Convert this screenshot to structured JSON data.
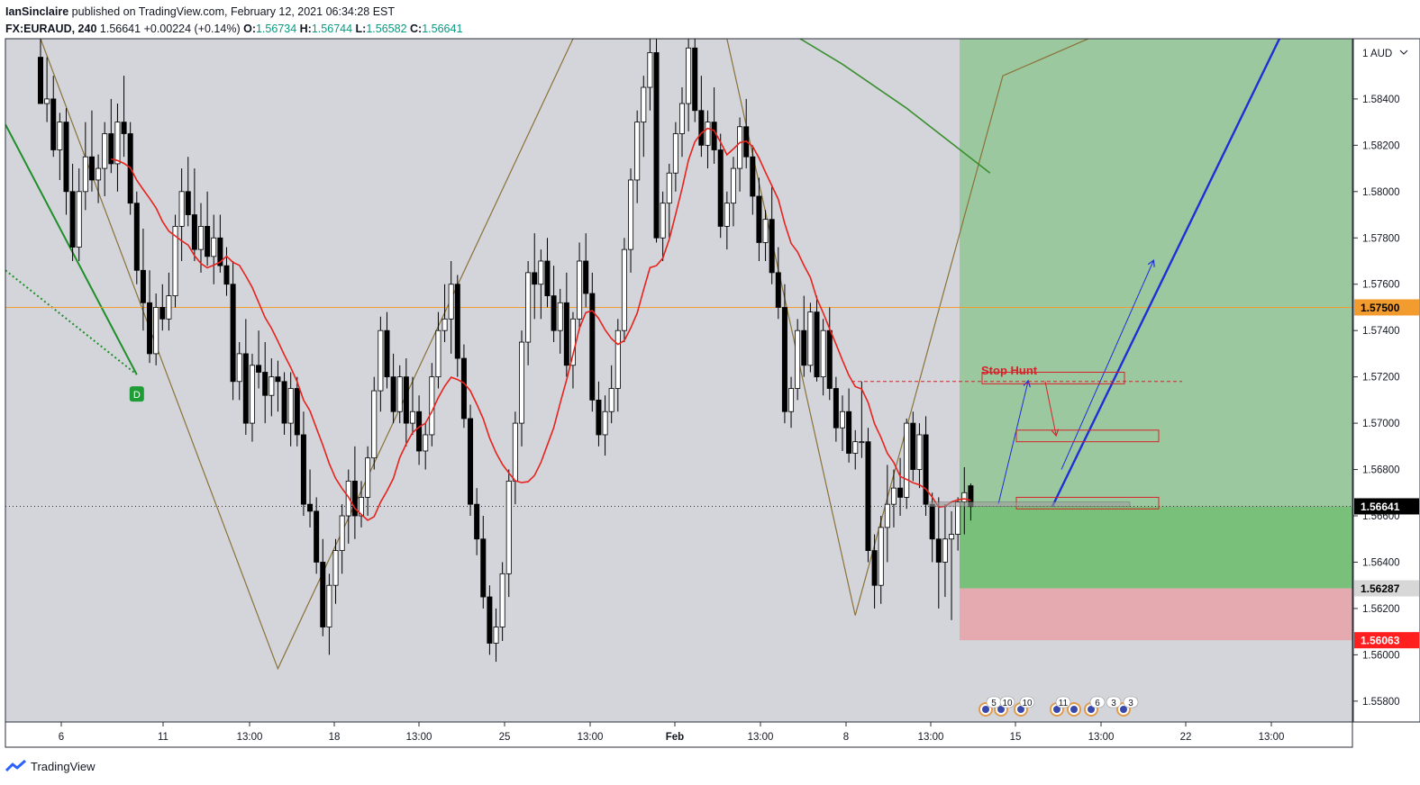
{
  "header": {
    "author": "IanSinclaire",
    "published_text": "published on TradingView.com, February 12, 2021 06:34:28 EST",
    "symbol": "FX:EURAUD, 240",
    "last": "1.56641",
    "change": "+0.00224 (+0.14%)",
    "o_label": "O:",
    "o_value": "1.56734",
    "h_label": "H:",
    "h_value": "1.56744",
    "l_label": "L:",
    "l_value": "1.56582",
    "c_label": "C:",
    "c_value": "1.56641"
  },
  "footer": {
    "brand": "TradingView"
  },
  "colors": {
    "bg": "#d3d5db",
    "up_candle": "#ffffff",
    "down_candle": "#000000",
    "ma_red": "#e8221c",
    "ma_green": "#3a8f2e",
    "harmonic": "#8a7238",
    "level": "#f29b2e",
    "target_zone": "#6fbe6f",
    "stop_zone": "#e7a4ab",
    "trend_blue": "#1e2fd6",
    "annotation_red": "#d7222a"
  },
  "chart_data": {
    "type": "candlestick",
    "symbol": "FX:EURAUD",
    "timeframe": "240",
    "y_axis_unit": "AUD",
    "y_ticks": [
      "1.58400",
      "1.58200",
      "1.58000",
      "1.57800",
      "1.57600",
      "1.57400",
      "1.57200",
      "1.57000",
      "1.56800",
      "1.56600",
      "1.56400",
      "1.56200",
      "1.56000",
      "1.55800"
    ],
    "ylim": [
      1.5571,
      1.5866
    ],
    "x_ticks": [
      "6",
      "11",
      "13:00",
      "18",
      "13:00",
      "25",
      "13:00",
      "Feb",
      "13:00",
      "8",
      "13:00",
      "15",
      "13:00",
      "22",
      "13:00"
    ],
    "price_labels": [
      {
        "label": "1.57500",
        "value": 1.575,
        "kind": "level"
      },
      {
        "label": "1.56641",
        "value": 1.56641,
        "kind": "last"
      },
      {
        "label": "1.56287",
        "value": 1.56287,
        "kind": "target-top"
      },
      {
        "label": "1.56063",
        "value": 1.56063,
        "kind": "stop"
      }
    ],
    "horizontal_level": 1.575,
    "annotation": {
      "text": "Stop Hunt"
    },
    "signal_badge": "D",
    "event_icons": [
      "5",
      "10",
      "10",
      "11",
      "6",
      "3",
      "3"
    ],
    "position": {
      "entry": 1.56641,
      "stop": 1.56063,
      "stop_box_top": 1.56287
    },
    "candles": [
      [
        1.5858,
        1.5866,
        1.5838,
        1.5838
      ],
      [
        1.5838,
        1.5858,
        1.583,
        1.584
      ],
      [
        1.584,
        1.585,
        1.5815,
        1.5818
      ],
      [
        1.5818,
        1.5834,
        1.5805,
        1.583
      ],
      [
        1.583,
        1.5836,
        1.579,
        1.58
      ],
      [
        1.58,
        1.5812,
        1.577,
        1.5776
      ],
      [
        1.5776,
        1.581,
        1.577,
        1.58
      ],
      [
        1.58,
        1.583,
        1.5792,
        1.5815
      ],
      [
        1.5815,
        1.5835,
        1.58,
        1.5805
      ],
      [
        1.5805,
        1.5816,
        1.5795,
        1.581
      ],
      [
        1.581,
        1.583,
        1.5798,
        1.5825
      ],
      [
        1.5825,
        1.584,
        1.5808,
        1.5812
      ],
      [
        1.5812,
        1.5838,
        1.58,
        1.583
      ],
      [
        1.583,
        1.585,
        1.5815,
        1.5825
      ],
      [
        1.5825,
        1.583,
        1.579,
        1.5795
      ],
      [
        1.5795,
        1.58,
        1.576,
        1.5766
      ],
      [
        1.5766,
        1.5784,
        1.574,
        1.5752
      ],
      [
        1.5752,
        1.5766,
        1.5726,
        1.573
      ],
      [
        1.573,
        1.5756,
        1.5725,
        1.575
      ],
      [
        1.575,
        1.576,
        1.574,
        1.5745
      ],
      [
        1.5745,
        1.5765,
        1.574,
        1.5755
      ],
      [
        1.5755,
        1.579,
        1.575,
        1.5785
      ],
      [
        1.5785,
        1.581,
        1.577,
        1.58
      ],
      [
        1.58,
        1.5815,
        1.5785,
        1.579
      ],
      [
        1.579,
        1.581,
        1.577,
        1.5775
      ],
      [
        1.5775,
        1.5795,
        1.5765,
        1.5785
      ],
      [
        1.5785,
        1.58,
        1.5768,
        1.5772
      ],
      [
        1.5772,
        1.579,
        1.576,
        1.578
      ],
      [
        1.578,
        1.579,
        1.5765,
        1.5768
      ],
      [
        1.5768,
        1.5776,
        1.5755,
        1.576
      ],
      [
        1.576,
        1.577,
        1.571,
        1.5718
      ],
      [
        1.5718,
        1.5735,
        1.571,
        1.573
      ],
      [
        1.573,
        1.5745,
        1.5695,
        1.57
      ],
      [
        1.57,
        1.573,
        1.5692,
        1.5725
      ],
      [
        1.5725,
        1.574,
        1.5715,
        1.5722
      ],
      [
        1.5722,
        1.5735,
        1.57,
        1.5712
      ],
      [
        1.5712,
        1.5728,
        1.5703,
        1.572
      ],
      [
        1.572,
        1.5727,
        1.5705,
        1.5718
      ],
      [
        1.5718,
        1.5722,
        1.5695,
        1.57
      ],
      [
        1.57,
        1.5722,
        1.569,
        1.5715
      ],
      [
        1.5715,
        1.572,
        1.569,
        1.5695
      ],
      [
        1.5695,
        1.5705,
        1.566,
        1.5665
      ],
      [
        1.5665,
        1.568,
        1.5655,
        1.5662
      ],
      [
        1.5662,
        1.5668,
        1.5635,
        1.564
      ],
      [
        1.564,
        1.565,
        1.5608,
        1.5612
      ],
      [
        1.5612,
        1.5635,
        1.56,
        1.563
      ],
      [
        1.563,
        1.565,
        1.5622,
        1.5645
      ],
      [
        1.5645,
        1.5665,
        1.5635,
        1.566
      ],
      [
        1.566,
        1.568,
        1.5648,
        1.5675
      ],
      [
        1.5675,
        1.569,
        1.565,
        1.566
      ],
      [
        1.566,
        1.5675,
        1.5655,
        1.5668
      ],
      [
        1.5668,
        1.569,
        1.566,
        1.5685
      ],
      [
        1.5685,
        1.572,
        1.568,
        1.5714
      ],
      [
        1.5714,
        1.5746,
        1.5705,
        1.574
      ],
      [
        1.574,
        1.5748,
        1.5715,
        1.572
      ],
      [
        1.572,
        1.573,
        1.57,
        1.5705
      ],
      [
        1.5705,
        1.5725,
        1.57,
        1.572
      ],
      [
        1.572,
        1.5728,
        1.569,
        1.57
      ],
      [
        1.57,
        1.572,
        1.5695,
        1.5705
      ],
      [
        1.5705,
        1.5712,
        1.5682,
        1.5688
      ],
      [
        1.5688,
        1.57,
        1.568,
        1.5695
      ],
      [
        1.5695,
        1.5726,
        1.569,
        1.572
      ],
      [
        1.572,
        1.5748,
        1.5715,
        1.574
      ],
      [
        1.574,
        1.576,
        1.5735,
        1.5745
      ],
      [
        1.5745,
        1.577,
        1.573,
        1.576
      ],
      [
        1.576,
        1.5764,
        1.572,
        1.5728
      ],
      [
        1.5728,
        1.5734,
        1.5698,
        1.5702
      ],
      [
        1.5702,
        1.5708,
        1.566,
        1.5665
      ],
      [
        1.5665,
        1.5672,
        1.5643,
        1.565
      ],
      [
        1.565,
        1.566,
        1.562,
        1.5625
      ],
      [
        1.5625,
        1.563,
        1.56,
        1.5605
      ],
      [
        1.5605,
        1.562,
        1.5597,
        1.5612
      ],
      [
        1.5612,
        1.564,
        1.5606,
        1.5635
      ],
      [
        1.5635,
        1.568,
        1.5625,
        1.5675
      ],
      [
        1.5675,
        1.5705,
        1.5665,
        1.57
      ],
      [
        1.57,
        1.574,
        1.569,
        1.5735
      ],
      [
        1.5735,
        1.577,
        1.5725,
        1.5765
      ],
      [
        1.5765,
        1.5782,
        1.5745,
        1.576
      ],
      [
        1.576,
        1.5775,
        1.5745,
        1.577
      ],
      [
        1.577,
        1.578,
        1.575,
        1.5755
      ],
      [
        1.5755,
        1.5768,
        1.5735,
        1.574
      ],
      [
        1.574,
        1.5758,
        1.573,
        1.5752
      ],
      [
        1.5752,
        1.5765,
        1.572,
        1.5725
      ],
      [
        1.5725,
        1.5748,
        1.5715,
        1.5745
      ],
      [
        1.5745,
        1.5778,
        1.574,
        1.577
      ],
      [
        1.577,
        1.5782,
        1.575,
        1.5756
      ],
      [
        1.5756,
        1.5765,
        1.5705,
        1.571
      ],
      [
        1.571,
        1.5718,
        1.569,
        1.5695
      ],
      [
        1.5695,
        1.5712,
        1.5686,
        1.5705
      ],
      [
        1.5705,
        1.5725,
        1.57,
        1.5715
      ],
      [
        1.5715,
        1.5745,
        1.5705,
        1.574
      ],
      [
        1.574,
        1.578,
        1.5735,
        1.5775
      ],
      [
        1.5775,
        1.581,
        1.5765,
        1.5805
      ],
      [
        1.5805,
        1.5835,
        1.5795,
        1.583
      ],
      [
        1.583,
        1.585,
        1.5815,
        1.5845
      ],
      [
        1.5845,
        1.5866,
        1.5835,
        1.586
      ],
      [
        1.586,
        1.5866,
        1.5778,
        1.578
      ],
      [
        1.578,
        1.58,
        1.577,
        1.5795
      ],
      [
        1.5795,
        1.5812,
        1.578,
        1.5808
      ],
      [
        1.5808,
        1.583,
        1.58,
        1.5825
      ],
      [
        1.5825,
        1.5845,
        1.5815,
        1.5838
      ],
      [
        1.5838,
        1.5866,
        1.5826,
        1.5862
      ],
      [
        1.5862,
        1.5866,
        1.583,
        1.5835
      ],
      [
        1.5835,
        1.585,
        1.5815,
        1.582
      ],
      [
        1.582,
        1.5835,
        1.581,
        1.583
      ],
      [
        1.583,
        1.5845,
        1.5812,
        1.5818
      ],
      [
        1.5818,
        1.5825,
        1.578,
        1.5785
      ],
      [
        1.5785,
        1.58,
        1.5775,
        1.5795
      ],
      [
        1.5795,
        1.5815,
        1.5785,
        1.581
      ],
      [
        1.581,
        1.5832,
        1.58,
        1.5828
      ],
      [
        1.5828,
        1.584,
        1.581,
        1.5815
      ],
      [
        1.5815,
        1.582,
        1.579,
        1.5798
      ],
      [
        1.5798,
        1.5806,
        1.577,
        1.5778
      ],
      [
        1.5778,
        1.5792,
        1.577,
        1.5788
      ],
      [
        1.5788,
        1.5802,
        1.576,
        1.5765
      ],
      [
        1.5765,
        1.5776,
        1.5745,
        1.575
      ],
      [
        1.575,
        1.576,
        1.57,
        1.5705
      ],
      [
        1.5705,
        1.572,
        1.5698,
        1.5715
      ],
      [
        1.5715,
        1.5745,
        1.571,
        1.574
      ],
      [
        1.574,
        1.5755,
        1.572,
        1.5725
      ],
      [
        1.5725,
        1.5752,
        1.5722,
        1.5748
      ],
      [
        1.5748,
        1.5755,
        1.5718,
        1.572
      ],
      [
        1.572,
        1.5745,
        1.5712,
        1.574
      ],
      [
        1.574,
        1.575,
        1.571,
        1.5715
      ],
      [
        1.5715,
        1.572,
        1.5692,
        1.5698
      ],
      [
        1.5698,
        1.5712,
        1.5688,
        1.5705
      ],
      [
        1.5705,
        1.5715,
        1.5683,
        1.5687
      ],
      [
        1.5687,
        1.5697,
        1.568,
        1.5692
      ],
      [
        1.5692,
        1.5718,
        1.5685,
        1.5692
      ],
      [
        1.5692,
        1.5698,
        1.564,
        1.5645
      ],
      [
        1.5645,
        1.5652,
        1.562,
        1.563
      ],
      [
        1.563,
        1.566,
        1.5622,
        1.5655
      ],
      [
        1.5655,
        1.5682,
        1.564,
        1.5665
      ],
      [
        1.5665,
        1.568,
        1.5655,
        1.5672
      ],
      [
        1.5672,
        1.5685,
        1.566,
        1.5668
      ],
      [
        1.5668,
        1.5702,
        1.5663,
        1.57
      ],
      [
        1.57,
        1.5705,
        1.5675,
        1.568
      ],
      [
        1.568,
        1.57,
        1.5672,
        1.5695
      ],
      [
        1.5695,
        1.5703,
        1.566,
        1.5665
      ],
      [
        1.5665,
        1.567,
        1.564,
        1.565
      ],
      [
        1.565,
        1.5668,
        1.562,
        1.564
      ],
      [
        1.564,
        1.5665,
        1.5625,
        1.565
      ],
      [
        1.565,
        1.5662,
        1.5615,
        1.5652
      ],
      [
        1.5652,
        1.5668,
        1.5645,
        1.5666
      ],
      [
        1.5666,
        1.5681,
        1.5652,
        1.567
      ],
      [
        1.5673,
        1.5674,
        1.5658,
        1.5664
      ]
    ]
  }
}
